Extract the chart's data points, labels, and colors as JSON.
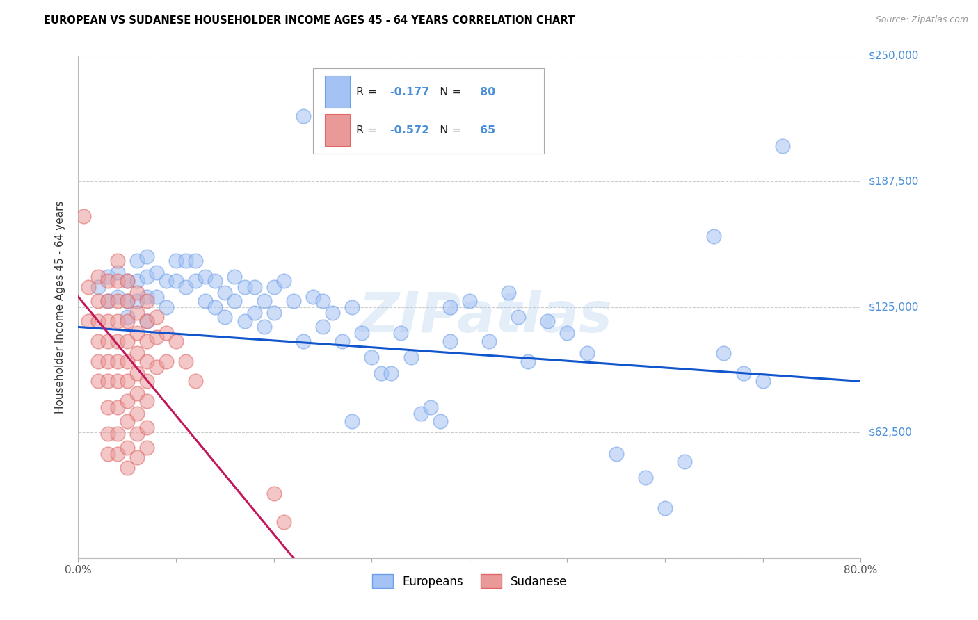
{
  "title": "EUROPEAN VS SUDANESE HOUSEHOLDER INCOME AGES 45 - 64 YEARS CORRELATION CHART",
  "source": "Source: ZipAtlas.com",
  "ylabel": "Householder Income Ages 45 - 64 years",
  "watermark": "ZIPatlas",
  "xlim": [
    0.0,
    0.8
  ],
  "ylim": [
    0,
    250000
  ],
  "yticks": [
    0,
    62500,
    125000,
    187500,
    250000
  ],
  "ytick_labels_right": [
    "",
    "$62,500",
    "$125,000",
    "$187,500",
    "$250,000"
  ],
  "xticks": [
    0.0,
    0.1,
    0.2,
    0.3,
    0.4,
    0.5,
    0.6,
    0.7,
    0.8
  ],
  "european_color": "#a4c2f4",
  "european_edge_color": "#6d9eeb",
  "sudanese_color": "#ea9999",
  "sudanese_edge_color": "#e06666",
  "trendline_european_color": "#1155cc",
  "trendline_sudanese_color": "#c2185b",
  "R_european": -0.177,
  "N_european": 80,
  "R_sudanese": -0.572,
  "N_sudanese": 65,
  "background_color": "#ffffff",
  "grid_color": "#cccccc",
  "title_color": "#000000",
  "source_color": "#999999",
  "axis_label_color": "#333333",
  "ytick_label_color": "#4a90d9",
  "xtick_label_color": "#555555",
  "legend_label_european": "Europeans",
  "legend_label_sudanese": "Sudanese",
  "eu_trendline_x0": 0.0,
  "eu_trendline_y0": 115000,
  "eu_trendline_x1": 0.8,
  "eu_trendline_y1": 88000,
  "su_trendline_x0": 0.0,
  "su_trendline_y0": 130000,
  "su_trendline_x1": 0.22,
  "su_trendline_y1": 0,
  "europeans_x": [
    0.02,
    0.03,
    0.03,
    0.04,
    0.04,
    0.05,
    0.05,
    0.05,
    0.06,
    0.06,
    0.06,
    0.07,
    0.07,
    0.07,
    0.07,
    0.08,
    0.08,
    0.09,
    0.09,
    0.1,
    0.1,
    0.11,
    0.11,
    0.12,
    0.12,
    0.13,
    0.13,
    0.14,
    0.14,
    0.15,
    0.15,
    0.16,
    0.16,
    0.17,
    0.17,
    0.18,
    0.18,
    0.19,
    0.19,
    0.2,
    0.2,
    0.21,
    0.22,
    0.23,
    0.24,
    0.25,
    0.25,
    0.26,
    0.27,
    0.28,
    0.29,
    0.3,
    0.31,
    0.32,
    0.33,
    0.34,
    0.35,
    0.36,
    0.37,
    0.38,
    0.38,
    0.4,
    0.42,
    0.44,
    0.45,
    0.46,
    0.48,
    0.5,
    0.52,
    0.55,
    0.58,
    0.6,
    0.62,
    0.65,
    0.66,
    0.68,
    0.7,
    0.72,
    0.23,
    0.28
  ],
  "europeans_y": [
    135000,
    140000,
    128000,
    142000,
    130000,
    138000,
    128000,
    120000,
    148000,
    138000,
    128000,
    150000,
    140000,
    130000,
    118000,
    142000,
    130000,
    138000,
    125000,
    148000,
    138000,
    148000,
    135000,
    148000,
    138000,
    140000,
    128000,
    138000,
    125000,
    132000,
    120000,
    140000,
    128000,
    135000,
    118000,
    135000,
    122000,
    128000,
    115000,
    135000,
    122000,
    138000,
    128000,
    108000,
    130000,
    128000,
    115000,
    122000,
    108000,
    125000,
    112000,
    100000,
    92000,
    92000,
    112000,
    100000,
    72000,
    75000,
    68000,
    125000,
    108000,
    128000,
    108000,
    132000,
    120000,
    98000,
    118000,
    112000,
    102000,
    52000,
    40000,
    25000,
    48000,
    160000,
    102000,
    92000,
    88000,
    205000,
    220000,
    68000
  ],
  "sudanese_x": [
    0.005,
    0.01,
    0.01,
    0.02,
    0.02,
    0.02,
    0.02,
    0.02,
    0.02,
    0.03,
    0.03,
    0.03,
    0.03,
    0.03,
    0.03,
    0.03,
    0.03,
    0.03,
    0.04,
    0.04,
    0.04,
    0.04,
    0.04,
    0.04,
    0.04,
    0.04,
    0.04,
    0.04,
    0.05,
    0.05,
    0.05,
    0.05,
    0.05,
    0.05,
    0.05,
    0.05,
    0.05,
    0.05,
    0.06,
    0.06,
    0.06,
    0.06,
    0.06,
    0.06,
    0.06,
    0.06,
    0.06,
    0.07,
    0.07,
    0.07,
    0.07,
    0.07,
    0.07,
    0.07,
    0.07,
    0.08,
    0.08,
    0.08,
    0.09,
    0.09,
    0.1,
    0.11,
    0.12,
    0.2,
    0.21
  ],
  "sudanese_y": [
    170000,
    135000,
    118000,
    140000,
    128000,
    118000,
    108000,
    98000,
    88000,
    138000,
    128000,
    118000,
    108000,
    98000,
    88000,
    75000,
    62000,
    52000,
    148000,
    138000,
    128000,
    118000,
    108000,
    98000,
    88000,
    75000,
    62000,
    52000,
    138000,
    128000,
    118000,
    108000,
    98000,
    88000,
    78000,
    68000,
    55000,
    45000,
    132000,
    122000,
    112000,
    102000,
    92000,
    82000,
    72000,
    62000,
    50000,
    128000,
    118000,
    108000,
    98000,
    88000,
    78000,
    65000,
    55000,
    120000,
    110000,
    95000,
    112000,
    98000,
    108000,
    98000,
    88000,
    32000,
    18000
  ]
}
